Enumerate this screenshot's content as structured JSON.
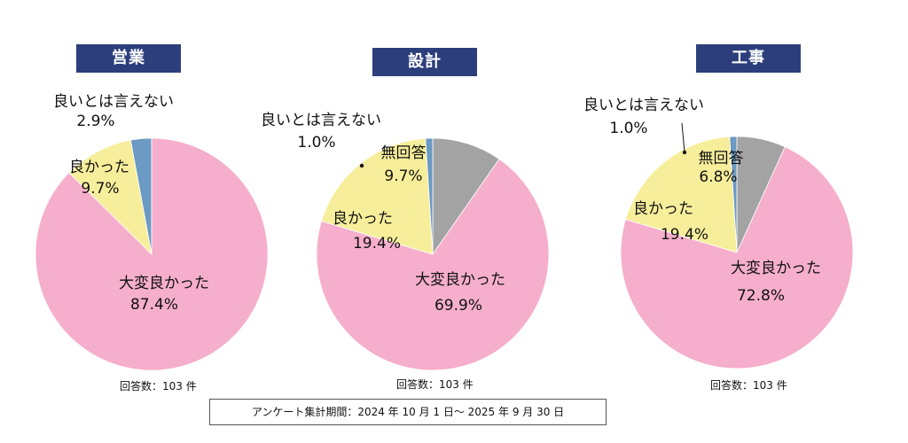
{
  "count_label": "回答数：103 件",
  "period_text": "アンケート集計期間：2024 年 10 月 1 日～ 2025 年 9 月 30 日",
  "colors": {
    "very_good": "#f5aecb",
    "good": "#f7ee9b",
    "not_good": "#6b9ac3",
    "no_answer": "#a3a3a3",
    "title_bg": "#2c3f7c"
  },
  "chart_data": [
    {
      "type": "pie",
      "title": "営業",
      "categories": [
        "大変良かった",
        "良かった",
        "良いとは言えない"
      ],
      "values": [
        87.4,
        9.7,
        2.9
      ],
      "labels": [
        {
          "name": "大変良かった",
          "pct": "87.4%"
        },
        {
          "name": "良かった",
          "pct": "9.7%"
        },
        {
          "name": "良いとは言えない",
          "pct": "2.9%"
        }
      ]
    },
    {
      "type": "pie",
      "title": "設計",
      "categories": [
        "大変良かった",
        "良かった",
        "良いとは言えない",
        "無回答"
      ],
      "values": [
        69.9,
        19.4,
        1.0,
        9.7
      ],
      "labels": [
        {
          "name": "大変良かった",
          "pct": "69.9%"
        },
        {
          "name": "良かった",
          "pct": "19.4%"
        },
        {
          "name": "良いとは言えない",
          "pct": "1.0%"
        },
        {
          "name": "無回答",
          "pct": "9.7%"
        }
      ]
    },
    {
      "type": "pie",
      "title": "工事",
      "categories": [
        "大変良かった",
        "良かった",
        "良いとは言えない",
        "無回答"
      ],
      "values": [
        72.8,
        19.4,
        1.0,
        6.8
      ],
      "labels": [
        {
          "name": "大変良かった",
          "pct": "72.8%"
        },
        {
          "name": "良かった",
          "pct": "19.4%"
        },
        {
          "name": "良いとは言えない",
          "pct": "1.0%"
        },
        {
          "name": "無回答",
          "pct": "6.8%"
        }
      ]
    }
  ]
}
